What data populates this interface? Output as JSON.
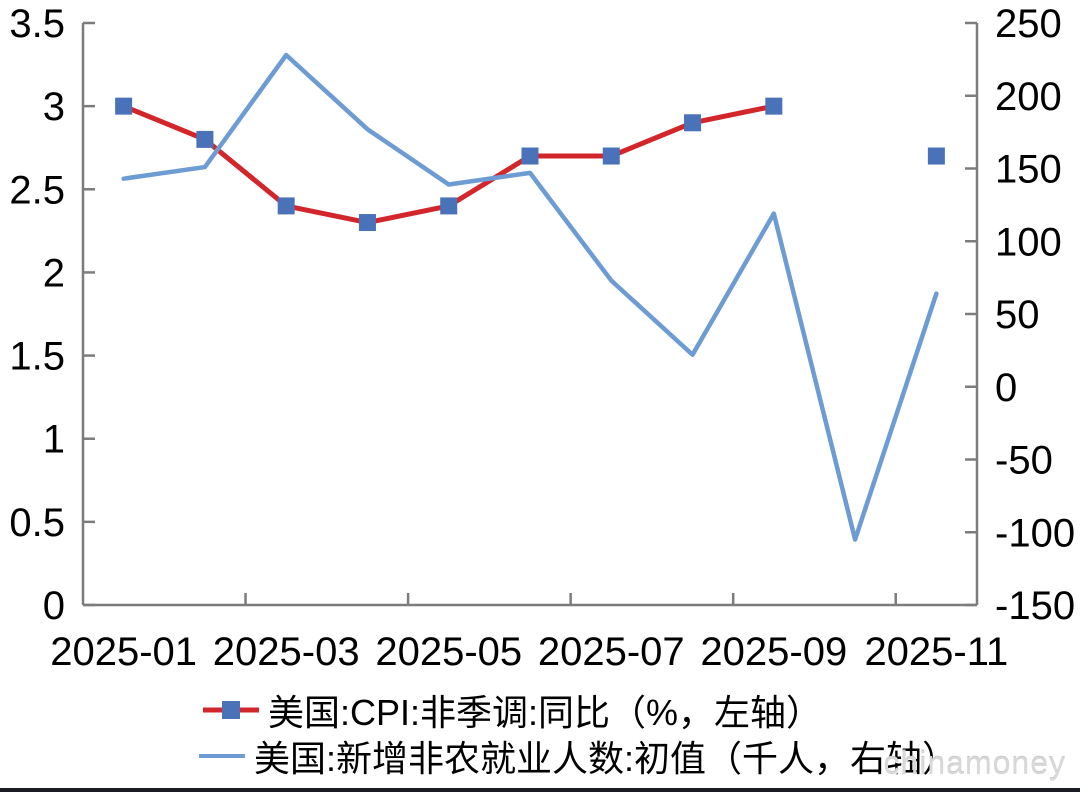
{
  "watermark": "chinamoney",
  "colors": {
    "cpi_line": "#d2262b",
    "cpi_marker": "#4a72b8",
    "payroll_line": "#6d9bd3",
    "axis": "#7c7c7c",
    "tick_label": "#000000",
    "watermark": "#d8d8d8",
    "bottom_bar": "#1b1b24"
  },
  "legend": {
    "items": [
      {
        "label": "美国:CPI:非季调:同比（%，左轴）",
        "swatch": "red-line-with-square-marker"
      },
      {
        "label": "美国:新增非农就业人数:初值（千人，右轴）",
        "swatch": "blue-line"
      }
    ]
  },
  "chart_data": {
    "type": "line",
    "categories": [
      "2025-01",
      "2025-02",
      "2025-03",
      "2025-04",
      "2025-05",
      "2025-06",
      "2025-07",
      "2025-08",
      "2025-09",
      "2025-10",
      "2025-11"
    ],
    "x_tick_labels": [
      "2025-01",
      "2025-03",
      "2025-05",
      "2025-07",
      "2025-09",
      "2025-11"
    ],
    "x_label_category_indexes": [
      0,
      2,
      4,
      6,
      8,
      10
    ],
    "x_boundary_tick_indexes": [
      2,
      4,
      6,
      8,
      10
    ],
    "series": [
      {
        "name": "美国:CPI:非季调:同比（%，左轴）",
        "axis": "left",
        "marker": "square",
        "values": [
          3.0,
          2.8,
          2.4,
          2.3,
          2.4,
          2.7,
          2.7,
          2.9,
          3.0,
          null,
          2.7
        ]
      },
      {
        "name": "美国:新增非农就业人数:初值（千人，右轴）",
        "axis": "right",
        "marker": "none",
        "values": [
          143,
          151,
          228,
          177,
          139,
          147,
          73,
          22,
          119,
          -105,
          64
        ]
      }
    ],
    "left_axis": {
      "min": 0,
      "max": 3.5,
      "step": 0.5,
      "labels": [
        "3.5",
        "3",
        "2.5",
        "2",
        "1.5",
        "1",
        "0.5",
        "0"
      ]
    },
    "right_axis": {
      "min": -150,
      "max": 250,
      "step": 50,
      "labels": [
        "250",
        "200",
        "150",
        "100",
        "50",
        "0",
        "-50",
        "-100",
        "-150"
      ]
    },
    "grid": false,
    "legend_position": "bottom"
  }
}
